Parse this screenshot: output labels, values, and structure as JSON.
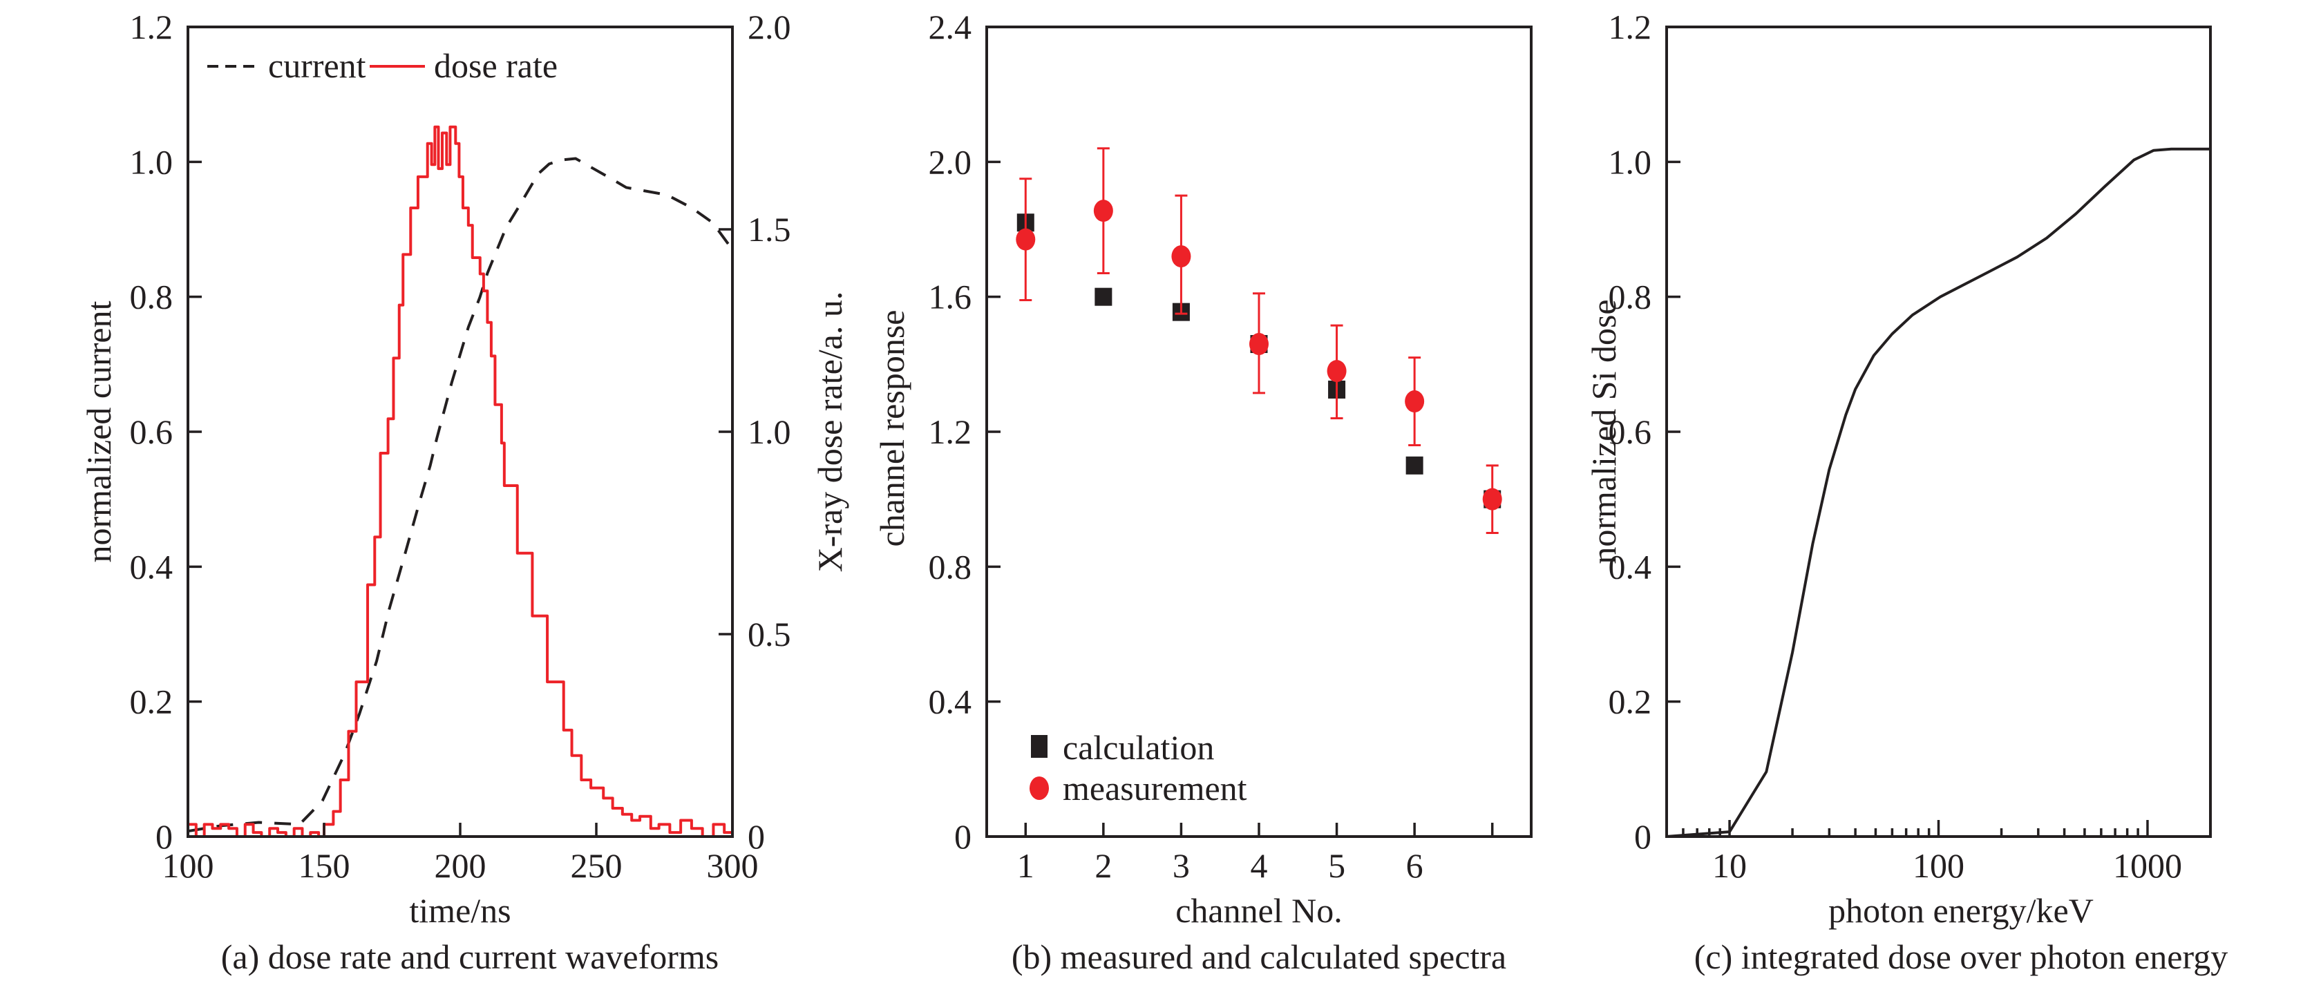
{
  "chart_data": [
    {
      "id": "a",
      "type": "line",
      "caption": "(a) dose rate and current waveforms",
      "xlabel": "time/ns",
      "ylabel": "normalized current",
      "ylabel_right": "X-ray dose rate/a. u.",
      "xlim": [
        100,
        300
      ],
      "ylim": [
        0,
        1.2
      ],
      "ylim_right": [
        0,
        2.0
      ],
      "xticks": [
        100,
        150,
        200,
        250,
        300
      ],
      "xtick_labels": [
        "100",
        "150",
        "200",
        "250",
        "300"
      ],
      "yticks": [
        0,
        0.2,
        0.4,
        0.6,
        0.8,
        1.0,
        1.2
      ],
      "ytick_labels": [
        "0",
        "0.2",
        "0.4",
        "0.6",
        "0.8",
        "1.0",
        "1.2"
      ],
      "yticks_right": [
        0,
        0.5,
        1.0,
        1.5,
        2.0
      ],
      "ytick_labels_right": [
        "0",
        "0.5",
        "1.0",
        "1.5",
        "2.0"
      ],
      "grid": false,
      "legend_position": "top",
      "legend": [
        {
          "label": "current",
          "style": "dashed",
          "color": "#231f20"
        },
        {
          "label": "dose rate",
          "style": "solid",
          "color": "#ed2228"
        }
      ],
      "series": [
        {
          "name": "current",
          "axis": "left",
          "color": "#231f20",
          "style": "dashed",
          "x": [
            100,
            112,
            126,
            141,
            149.4,
            157.6,
            163,
            169.3,
            174,
            179.6,
            185,
            189,
            191.4,
            196.9,
            203,
            207.2,
            210,
            216.9,
            221,
            228.6,
            232.7,
            237.6,
            242.4,
            255.5,
            261,
            276,
            285,
            292.7,
            300
          ],
          "y": [
            0.008,
            0.016,
            0.021,
            0.018,
            0.053,
            0.123,
            0.182,
            0.26,
            0.338,
            0.417,
            0.495,
            0.55,
            0.59,
            0.673,
            0.755,
            0.799,
            0.835,
            0.903,
            0.93,
            0.982,
            0.997,
            1.003,
            1.005,
            0.975,
            0.962,
            0.951,
            0.932,
            0.91,
            0.87
          ]
        },
        {
          "name": "dose rate",
          "axis": "right",
          "color": "#ed2228",
          "style": "solid",
          "x": [
            100,
            103,
            106,
            109,
            112,
            115,
            118,
            121,
            124,
            127,
            130,
            133,
            136,
            139,
            142,
            145,
            148,
            150,
            153.4,
            156,
            159,
            161.8,
            166,
            168.6,
            170.7,
            173.5,
            175.5,
            177.6,
            179,
            181.8,
            184.5,
            188,
            189.5,
            190.7,
            192,
            193.4,
            195,
            196.3,
            198.3,
            199.6,
            201,
            203,
            204.5,
            207.3,
            208.6,
            210,
            211.4,
            212.8,
            215.2,
            216.2,
            221,
            226.5,
            232,
            238,
            241,
            244.5,
            248,
            252.6,
            256,
            259.6,
            263,
            266,
            270,
            273,
            277,
            281,
            285,
            289,
            293,
            297,
            300
          ],
          "y": [
            0.03,
            0.0,
            0.03,
            0.02,
            0.03,
            0.02,
            0.0,
            0.03,
            0.01,
            0.0,
            0.02,
            0.01,
            0.0,
            0.02,
            0.0,
            0.01,
            0.0,
            0.03,
            0.062,
            0.14,
            0.26,
            0.382,
            0.622,
            0.74,
            0.947,
            1.032,
            1.182,
            1.313,
            1.438,
            1.553,
            1.63,
            1.712,
            1.66,
            1.753,
            1.65,
            1.738,
            1.66,
            1.753,
            1.712,
            1.63,
            1.553,
            1.51,
            1.43,
            1.39,
            1.348,
            1.27,
            1.187,
            1.067,
            0.972,
            0.867,
            0.7,
            0.545,
            0.382,
            0.263,
            0.2,
            0.14,
            0.12,
            0.095,
            0.07,
            0.055,
            0.04,
            0.05,
            0.02,
            0.03,
            0.01,
            0.04,
            0.02,
            0.0,
            0.03,
            0.01,
            0.02
          ]
        }
      ]
    },
    {
      "id": "b",
      "type": "scatter",
      "caption": "(b) measured and calculated spectra",
      "xlabel": "channel No.",
      "ylabel": "channel response",
      "xlim": [
        0.5,
        7.5
      ],
      "ylim": [
        0,
        2.4
      ],
      "xticks": [
        1,
        2,
        3,
        4,
        5,
        6,
        7
      ],
      "xtick_labels": [
        "1",
        "2",
        "3",
        "4",
        "5",
        "6",
        ""
      ],
      "yticks": [
        0,
        0.4,
        0.8,
        1.2,
        1.6,
        2.0,
        2.4
      ],
      "ytick_labels": [
        "0",
        "0.4",
        "0.8",
        "1.2",
        "1.6",
        "2.0",
        "2.4"
      ],
      "grid": false,
      "legend_position": "bottom-left",
      "legend": [
        {
          "label": "calculation",
          "marker": "square",
          "color": "#231f20"
        },
        {
          "label": "measurement",
          "marker": "circle",
          "color": "#ed2228"
        }
      ],
      "series": [
        {
          "name": "calculation",
          "marker": "square",
          "color": "#231f20",
          "x": [
            1,
            2,
            3,
            4,
            5,
            6,
            7
          ],
          "y": [
            1.82,
            1.6,
            1.555,
            1.46,
            1.325,
            1.1,
            1.0
          ]
        },
        {
          "name": "measurement",
          "marker": "circle",
          "color": "#ed2228",
          "x": [
            1,
            2,
            3,
            4,
            5,
            6,
            7
          ],
          "y": [
            1.77,
            1.855,
            1.72,
            1.46,
            1.38,
            1.29,
            1.0
          ],
          "err_low": [
            1.59,
            1.67,
            1.55,
            1.315,
            1.24,
            1.16,
            0.9
          ],
          "err_high": [
            1.95,
            2.04,
            1.9,
            1.61,
            1.515,
            1.42,
            1.1
          ]
        }
      ]
    },
    {
      "id": "c",
      "type": "line",
      "caption": "(c) integrated dose over photon energy",
      "xlabel": "photon energy/keV",
      "ylabel": "normalized Si dose",
      "xscale": "log",
      "xlim": [
        5,
        2000
      ],
      "ylim": [
        0,
        1.2
      ],
      "xticks": [
        10,
        100,
        1000
      ],
      "xtick_labels": [
        "10",
        "100",
        "1000"
      ],
      "yticks": [
        0,
        0.2,
        0.4,
        0.6,
        0.8,
        1.0,
        1.2
      ],
      "ytick_labels": [
        "0",
        "0.2",
        "0.4",
        "0.6",
        "0.8",
        "1.0",
        "1.2"
      ],
      "grid": false,
      "series": [
        {
          "name": "normalized Si dose",
          "color": "#231f20",
          "style": "solid",
          "x": [
            5,
            10,
            15,
            20,
            25,
            30,
            36,
            40,
            49,
            60,
            75,
            102,
            174,
            238,
            329,
            454,
            627,
            862,
            1070,
            1300,
            2000
          ],
          "y": [
            0.0,
            0.007,
            0.096,
            0.273,
            0.434,
            0.544,
            0.625,
            0.663,
            0.713,
            0.745,
            0.773,
            0.8,
            0.837,
            0.859,
            0.887,
            0.923,
            0.964,
            1.003,
            1.017,
            1.019,
            1.019
          ]
        }
      ]
    }
  ]
}
